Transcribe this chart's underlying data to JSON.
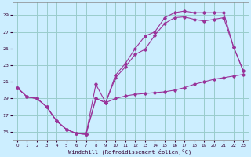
{
  "xlabel": "Windchill (Refroidissement éolien,°C)",
  "background_color": "#cceeff",
  "grid_color": "#99cccc",
  "line_color": "#993399",
  "marker_color": "#993399",
  "xlim": [
    -0.5,
    23.5
  ],
  "ylim": [
    14.0,
    30.5
  ],
  "yticks": [
    15,
    17,
    19,
    21,
    23,
    25,
    27,
    29
  ],
  "xticks": [
    0,
    1,
    2,
    3,
    4,
    5,
    6,
    7,
    8,
    9,
    10,
    11,
    12,
    13,
    14,
    15,
    16,
    17,
    18,
    19,
    20,
    21,
    22,
    23
  ],
  "series1_x": [
    0,
    1,
    2,
    3,
    4,
    5,
    6,
    7,
    8,
    9,
    10,
    11,
    12,
    13,
    14,
    15,
    16,
    17,
    18,
    19,
    20,
    21,
    22,
    23
  ],
  "series1_y": [
    20.3,
    19.2,
    19.0,
    18.0,
    16.3,
    15.3,
    14.8,
    14.7,
    19.0,
    18.5,
    19.0,
    19.3,
    19.5,
    19.6,
    19.7,
    19.8,
    20.0,
    20.3,
    20.7,
    21.0,
    21.3,
    21.5,
    21.7,
    21.9
  ],
  "series2_x": [
    0,
    1,
    2,
    3,
    4,
    5,
    6,
    7,
    8,
    9,
    10,
    11,
    12,
    13,
    14,
    15,
    16,
    17,
    18,
    19,
    20,
    21,
    22,
    23
  ],
  "series2_y": [
    20.3,
    19.2,
    19.0,
    18.0,
    16.3,
    15.3,
    14.8,
    14.7,
    19.0,
    18.5,
    21.5,
    22.8,
    24.3,
    24.9,
    26.6,
    28.0,
    28.7,
    28.8,
    28.5,
    28.3,
    28.5,
    28.7,
    25.2,
    22.3
  ],
  "series3_x": [
    0,
    1,
    2,
    3,
    4,
    5,
    6,
    7,
    8,
    9,
    10,
    11,
    12,
    13,
    14,
    15,
    16,
    17,
    18,
    19,
    20,
    21,
    22,
    23
  ],
  "series3_y": [
    20.3,
    19.2,
    19.0,
    18.0,
    16.3,
    15.3,
    14.8,
    14.7,
    20.7,
    18.5,
    21.8,
    23.2,
    25.0,
    26.5,
    27.0,
    28.7,
    29.3,
    29.5,
    29.3,
    29.3,
    29.3,
    29.3,
    25.2,
    22.3
  ]
}
